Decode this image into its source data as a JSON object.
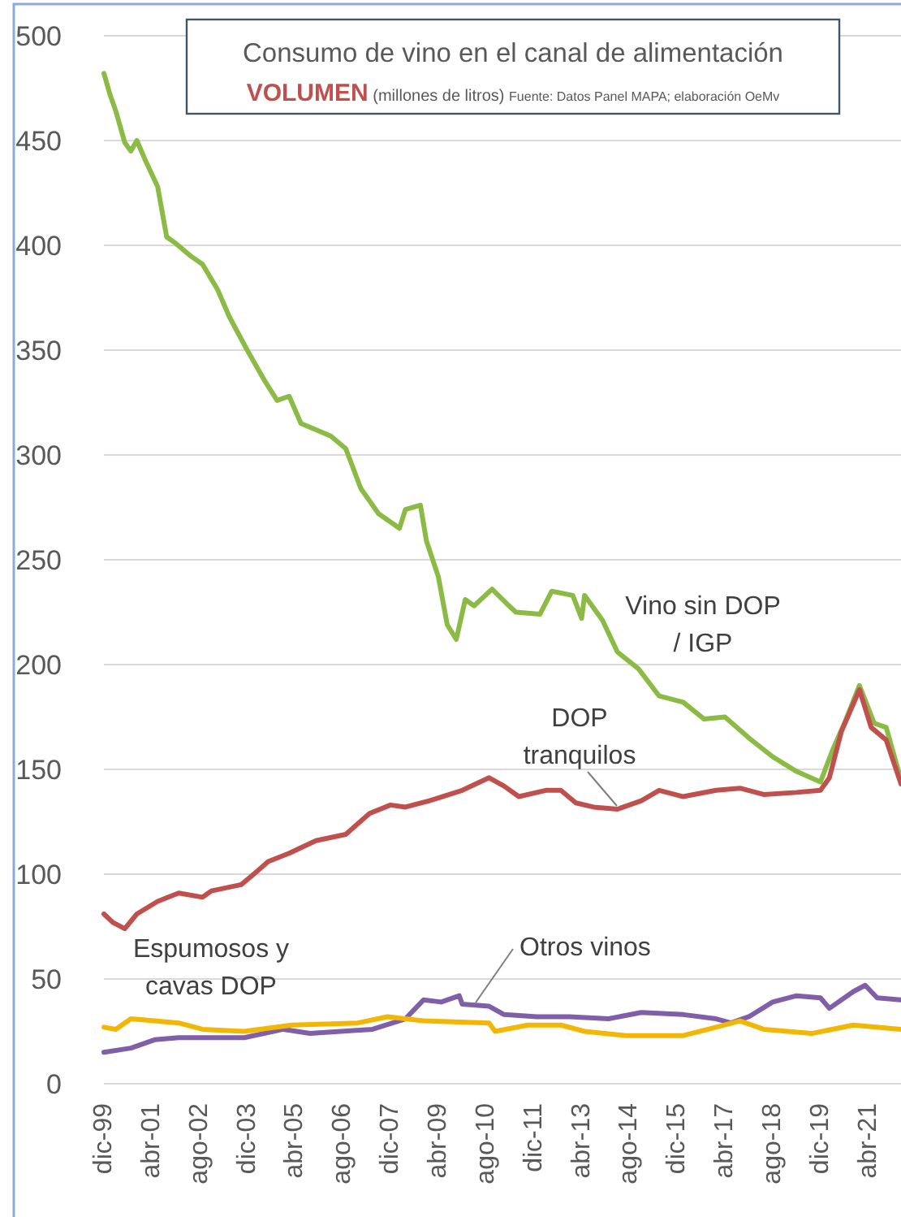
{
  "chart_data": {
    "type": "line",
    "title": "Consumo de vino en el canal de alimentación",
    "subtitle": "VOLUMEN (millones de litros)",
    "annotations": [
      "Fuente: Datos Panel MAPA; elaboración OeMv"
    ],
    "xlim": [
      "1999-12",
      "2022-03"
    ],
    "ylim": [
      0,
      500
    ],
    "yticks": [
      0,
      50,
      100,
      150,
      200,
      250,
      300,
      350,
      400,
      450,
      500
    ],
    "xticks": [
      {
        "value": "1999-12",
        "label": "dic-99"
      },
      {
        "value": "2001-04",
        "label": "abr-01"
      },
      {
        "value": "2002-08",
        "label": "ago-02"
      },
      {
        "value": "2003-12",
        "label": "dic-03"
      },
      {
        "value": "2005-04",
        "label": "abr-05"
      },
      {
        "value": "2006-08",
        "label": "ago-06"
      },
      {
        "value": "2007-12",
        "label": "dic-07"
      },
      {
        "value": "2009-04",
        "label": "abr-09"
      },
      {
        "value": "2010-08",
        "label": "ago-10"
      },
      {
        "value": "2011-12",
        "label": "dic-11"
      },
      {
        "value": "2013-04",
        "label": "abr-13"
      },
      {
        "value": "2014-08",
        "label": "ago-14"
      },
      {
        "value": "2015-12",
        "label": "dic-15"
      },
      {
        "value": "2017-04",
        "label": "abr-17"
      },
      {
        "value": "2018-08",
        "label": "ago-18"
      },
      {
        "value": "2019-12",
        "label": "dic-19"
      },
      {
        "value": "2021-04",
        "label": "abr-21"
      }
    ],
    "grid": "y",
    "legend": false,
    "marker": "none",
    "line_style": "solid",
    "series": [
      {
        "name": "Vino sin DOP / IGP",
        "color": "#8cbb45",
        "x": [
          "1999-12",
          "2000-02",
          "2000-04",
          "2000-07",
          "2000-09",
          "2000-11",
          "2001-02",
          "2001-06",
          "2001-09",
          "2001-12",
          "2002-05",
          "2002-09",
          "2003-02",
          "2003-06",
          "2003-12",
          "2004-06",
          "2004-10",
          "2005-02",
          "2005-06",
          "2005-11",
          "2006-04",
          "2006-09",
          "2007-02",
          "2007-08",
          "2008-03",
          "2008-05",
          "2008-10",
          "2008-12",
          "2009-04",
          "2009-07",
          "2009-10",
          "2010-01",
          "2010-04",
          "2010-10",
          "2011-03",
          "2011-06",
          "2012-02",
          "2012-06",
          "2013-01",
          "2013-04",
          "2013-05",
          "2013-11",
          "2014-04",
          "2014-11",
          "2015-06",
          "2016-02",
          "2016-09",
          "2017-04",
          "2017-12",
          "2018-08",
          "2019-04",
          "2019-12",
          "2020-04",
          "2020-08",
          "2021-01",
          "2021-06",
          "2021-10",
          "2022-03"
        ],
        "values": [
          482,
          472,
          464,
          449,
          445,
          450,
          440,
          428,
          404,
          401,
          395,
          391,
          379,
          366,
          350,
          335,
          326,
          328,
          315,
          312,
          309,
          303,
          284,
          272,
          265,
          274,
          276,
          259,
          242,
          219,
          212,
          231,
          228,
          236,
          229,
          225,
          224,
          235,
          233,
          222,
          233,
          221,
          206,
          198,
          185,
          182,
          174,
          175,
          165,
          156,
          149,
          144,
          159,
          172,
          190,
          172,
          170,
          145
        ]
      },
      {
        "name": "DOP tranquilos",
        "color": "#c0504d",
        "x": [
          "1999-12",
          "2000-03",
          "2000-07",
          "2000-11",
          "2001-06",
          "2002-01",
          "2002-09",
          "2002-12",
          "2003-10",
          "2004-03",
          "2004-07",
          "2005-02",
          "2005-11",
          "2006-09",
          "2007-05",
          "2007-12",
          "2008-05",
          "2009-01",
          "2009-12",
          "2010-09",
          "2011-02",
          "2011-07",
          "2012-04",
          "2012-09",
          "2013-02",
          "2013-08",
          "2014-04",
          "2014-12",
          "2015-06",
          "2016-02",
          "2017-01",
          "2017-09",
          "2018-05",
          "2019-04",
          "2019-12",
          "2020-03",
          "2020-07",
          "2021-01",
          "2021-05",
          "2021-10",
          "2022-03"
        ],
        "values": [
          81,
          77,
          74,
          81,
          87,
          91,
          89,
          92,
          95,
          101,
          106,
          110,
          116,
          119,
          129,
          133,
          132,
          135,
          140,
          146,
          142,
          137,
          140,
          140,
          134,
          132,
          131,
          135,
          140,
          137,
          140,
          141,
          138,
          139,
          140,
          146,
          168,
          188,
          170,
          164,
          143
        ]
      },
      {
        "name": "Otros vinos",
        "color": "#7f5fa8",
        "x": [
          "1999-12",
          "2000-09",
          "2001-05",
          "2002-01",
          "2003-11",
          "2004-12",
          "2005-09",
          "2007-06",
          "2008-05",
          "2008-11",
          "2009-05",
          "2009-11",
          "2009-12",
          "2010-09",
          "2011-02",
          "2012-01",
          "2012-12",
          "2014-01",
          "2014-12",
          "2016-02",
          "2017-01",
          "2017-06",
          "2017-12",
          "2018-08",
          "2019-04",
          "2019-12",
          "2020-03",
          "2020-11",
          "2021-03",
          "2021-07",
          "2022-03"
        ],
        "values": [
          15,
          17,
          21,
          22,
          22,
          26,
          24,
          26,
          31,
          40,
          39,
          42,
          38,
          37,
          33,
          32,
          32,
          31,
          34,
          33,
          31,
          29,
          32,
          39,
          42,
          41,
          36,
          44,
          47,
          41,
          40
        ]
      },
      {
        "name": "Espumosos y cavas DOP",
        "color": "#f2b705",
        "x": [
          "1999-12",
          "2000-04",
          "2000-09",
          "2001-05",
          "2002-01",
          "2002-09",
          "2003-11",
          "2005-03",
          "2007-01",
          "2007-11",
          "2008-11",
          "2010-09",
          "2010-11",
          "2011-10",
          "2012-09",
          "2013-05",
          "2014-07",
          "2016-02",
          "2017-01",
          "2017-09",
          "2018-05",
          "2019-09",
          "2020-11",
          "2022-03"
        ],
        "values": [
          27,
          26,
          31,
          30,
          29,
          26,
          25,
          28,
          29,
          32,
          30,
          29,
          25,
          28,
          28,
          25,
          23,
          23,
          27,
          30,
          26,
          24,
          28,
          26
        ]
      }
    ]
  }
}
